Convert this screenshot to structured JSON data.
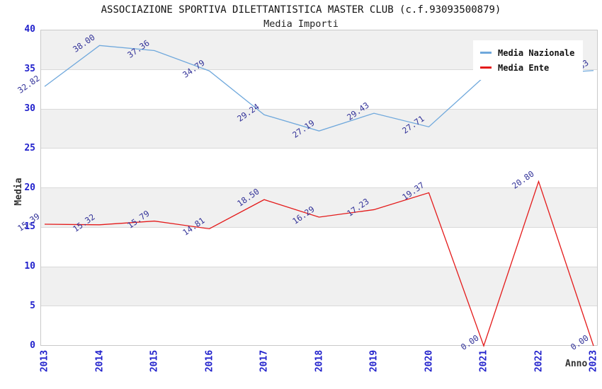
{
  "title": "ASSOCIAZIONE SPORTIVA DILETTANTISTICA MASTER CLUB (c.f.93093500879)",
  "subtitle": "Media Importi",
  "legend": {
    "items": [
      {
        "label": "Media Nazionale",
        "color": "#6fa8dc"
      },
      {
        "label": "Media Ente",
        "color": "#e41a1a"
      }
    ]
  },
  "colors": {
    "axis_tick": "#2222cc",
    "data_label": "#333399",
    "band_gray": "#f0f0f0"
  },
  "chart_data": {
    "type": "line",
    "x": [
      "2013",
      "2014",
      "2015",
      "2016",
      "2017",
      "2018",
      "2019",
      "2020",
      "2021",
      "2022",
      "2023"
    ],
    "series": [
      {
        "name": "Media Nazionale",
        "color": "#6fa8dc",
        "values": [
          32.82,
          38.0,
          37.36,
          34.79,
          29.24,
          27.19,
          29.43,
          27.71,
          34.0,
          34.4,
          34.83
        ],
        "labels": [
          "32.82",
          "38.00",
          "37.36",
          "34.79",
          "29.24",
          "27.19",
          "29.43",
          "27.71",
          "",
          "",
          "34.83"
        ]
      },
      {
        "name": "Media Ente",
        "color": "#e41a1a",
        "values": [
          15.39,
          15.32,
          15.79,
          14.81,
          18.5,
          16.29,
          17.23,
          19.37,
          0.0,
          20.8,
          0.0
        ],
        "labels": [
          "15.39",
          "15.32",
          "15.79",
          "14.81",
          "18.50",
          "16.29",
          "17.23",
          "19.37",
          "0.00",
          "20.80",
          "0.00"
        ]
      }
    ],
    "xlabel": "Anno",
    "ylabel": "Media",
    "ylim": [
      0,
      40
    ],
    "yticks": [
      0,
      5,
      10,
      15,
      20,
      25,
      30,
      35,
      40
    ],
    "grid": true,
    "legend_position": "top-right",
    "note": "Blue 2021 and 2022 point labels are hidden behind the legend box; their values are estimated from line position."
  }
}
